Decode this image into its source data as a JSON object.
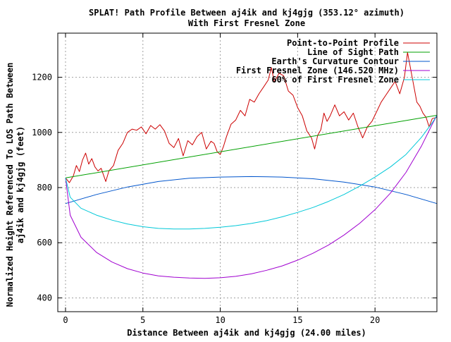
{
  "chart_data": {
    "type": "line",
    "title": "SPLAT! Path Profile Between aj4ik and kj4gjg (353.12° azimuth)",
    "subtitle": "With First Fresnel Zone",
    "xlabel": "Distance Between aj4ik and kj4gjg (24.00 miles)",
    "ylabel_line1": "Normalized Height Referenced To LOS Path Between",
    "ylabel_line2": "aj4ik and kj4gjg (feet)",
    "xlim": [
      -0.5,
      24
    ],
    "ylim": [
      350,
      1360
    ],
    "x_ticks": [
      0,
      5,
      10,
      15,
      20
    ],
    "y_ticks": [
      400,
      600,
      800,
      1000,
      1200
    ],
    "grid": true,
    "legend_position": "top-right",
    "series": [
      {
        "name": "Point-to-Point Profile",
        "color": "#cc0000",
        "points": [
          [
            0,
            835
          ],
          [
            0.25,
            818
          ],
          [
            0.5,
            842
          ],
          [
            0.7,
            880
          ],
          [
            0.9,
            858
          ],
          [
            1.1,
            900
          ],
          [
            1.3,
            925
          ],
          [
            1.5,
            885
          ],
          [
            1.7,
            905
          ],
          [
            1.9,
            875
          ],
          [
            2.1,
            860
          ],
          [
            2.3,
            870
          ],
          [
            2.6,
            822
          ],
          [
            2.8,
            860
          ],
          [
            3.1,
            880
          ],
          [
            3.4,
            935
          ],
          [
            3.7,
            960
          ],
          [
            4.0,
            1000
          ],
          [
            4.3,
            1012
          ],
          [
            4.6,
            1008
          ],
          [
            4.9,
            1020
          ],
          [
            5.2,
            995
          ],
          [
            5.5,
            1025
          ],
          [
            5.8,
            1012
          ],
          [
            6.1,
            1028
          ],
          [
            6.4,
            1005
          ],
          [
            6.7,
            960
          ],
          [
            7.0,
            945
          ],
          [
            7.3,
            978
          ],
          [
            7.6,
            915
          ],
          [
            7.9,
            970
          ],
          [
            8.2,
            955
          ],
          [
            8.5,
            985
          ],
          [
            8.8,
            1000
          ],
          [
            9.1,
            940
          ],
          [
            9.4,
            968
          ],
          [
            9.6,
            960
          ],
          [
            9.8,
            930
          ],
          [
            10.0,
            920
          ],
          [
            10.2,
            948
          ],
          [
            10.4,
            985
          ],
          [
            10.7,
            1030
          ],
          [
            11.0,
            1045
          ],
          [
            11.3,
            1080
          ],
          [
            11.6,
            1060
          ],
          [
            11.9,
            1120
          ],
          [
            12.2,
            1110
          ],
          [
            12.5,
            1140
          ],
          [
            12.8,
            1165
          ],
          [
            13.1,
            1190
          ],
          [
            13.3,
            1235
          ],
          [
            13.5,
            1182
          ],
          [
            13.8,
            1215
          ],
          [
            14.1,
            1205
          ],
          [
            14.4,
            1150
          ],
          [
            14.7,
            1135
          ],
          [
            15.0,
            1090
          ],
          [
            15.3,
            1060
          ],
          [
            15.6,
            1005
          ],
          [
            15.9,
            980
          ],
          [
            16.1,
            940
          ],
          [
            16.3,
            990
          ],
          [
            16.5,
            1010
          ],
          [
            16.7,
            1070
          ],
          [
            16.9,
            1040
          ],
          [
            17.1,
            1060
          ],
          [
            17.4,
            1100
          ],
          [
            17.7,
            1060
          ],
          [
            18.0,
            1075
          ],
          [
            18.3,
            1045
          ],
          [
            18.6,
            1070
          ],
          [
            18.9,
            1020
          ],
          [
            19.2,
            980
          ],
          [
            19.5,
            1020
          ],
          [
            19.8,
            1040
          ],
          [
            20.1,
            1075
          ],
          [
            20.4,
            1110
          ],
          [
            20.7,
            1135
          ],
          [
            21.0,
            1160
          ],
          [
            21.3,
            1185
          ],
          [
            21.6,
            1140
          ],
          [
            21.9,
            1200
          ],
          [
            22.1,
            1290
          ],
          [
            22.3,
            1230
          ],
          [
            22.5,
            1170
          ],
          [
            22.7,
            1110
          ],
          [
            22.9,
            1095
          ],
          [
            23.1,
            1070
          ],
          [
            23.3,
            1055
          ],
          [
            23.5,
            1020
          ],
          [
            23.7,
            1050
          ],
          [
            24.0,
            1055
          ]
        ]
      },
      {
        "name": "Line of Sight Path",
        "color": "#00a000",
        "points": [
          [
            0,
            835
          ],
          [
            24,
            1062
          ]
        ]
      },
      {
        "name": "Earth's Curvature Contour",
        "color": "#0055cc",
        "points": [
          [
            0,
            742
          ],
          [
            2,
            775
          ],
          [
            4,
            802
          ],
          [
            6,
            822
          ],
          [
            8,
            834
          ],
          [
            10,
            838
          ],
          [
            12,
            840
          ],
          [
            14,
            838
          ],
          [
            16,
            832
          ],
          [
            18,
            820
          ],
          [
            20,
            802
          ],
          [
            22,
            775
          ],
          [
            24,
            742
          ]
        ]
      },
      {
        "name": "First Fresnel Zone (146.520 MHz)",
        "color": "#a000d0",
        "points": [
          [
            0,
            835
          ],
          [
            0.3,
            700
          ],
          [
            1,
            620
          ],
          [
            2,
            565
          ],
          [
            3,
            530
          ],
          [
            4,
            506
          ],
          [
            5,
            490
          ],
          [
            6,
            480
          ],
          [
            7,
            475
          ],
          [
            8,
            472
          ],
          [
            9,
            471
          ],
          [
            10,
            473
          ],
          [
            11,
            478
          ],
          [
            12,
            487
          ],
          [
            13,
            500
          ],
          [
            14,
            516
          ],
          [
            15,
            537
          ],
          [
            16,
            562
          ],
          [
            17,
            592
          ],
          [
            18,
            628
          ],
          [
            19,
            670
          ],
          [
            20,
            720
          ],
          [
            21,
            780
          ],
          [
            22,
            855
          ],
          [
            23,
            950
          ],
          [
            23.7,
            1030
          ],
          [
            24,
            1062
          ]
        ]
      },
      {
        "name": "60% of First Fresnel Zone",
        "color": "#00c8d8",
        "points": [
          [
            0,
            835
          ],
          [
            0.3,
            765
          ],
          [
            1,
            725
          ],
          [
            2,
            700
          ],
          [
            3,
            682
          ],
          [
            4,
            668
          ],
          [
            5,
            658
          ],
          [
            6,
            652
          ],
          [
            7,
            650
          ],
          [
            8,
            650
          ],
          [
            9,
            652
          ],
          [
            10,
            656
          ],
          [
            11,
            662
          ],
          [
            12,
            670
          ],
          [
            13,
            680
          ],
          [
            14,
            694
          ],
          [
            15,
            710
          ],
          [
            16,
            728
          ],
          [
            17,
            750
          ],
          [
            18,
            775
          ],
          [
            19,
            805
          ],
          [
            20,
            838
          ],
          [
            21,
            875
          ],
          [
            22,
            920
          ],
          [
            23,
            982
          ],
          [
            23.7,
            1035
          ],
          [
            24,
            1062
          ]
        ]
      }
    ]
  }
}
